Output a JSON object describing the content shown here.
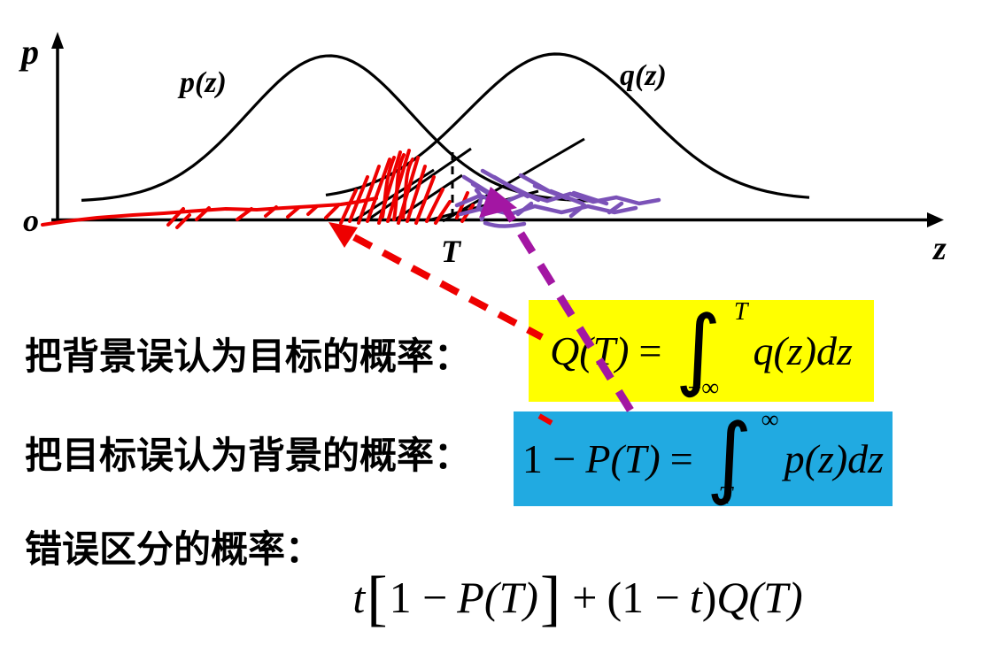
{
  "diagram": {
    "y_axis_label": "p",
    "origin_label": "o",
    "x_axis_label": "z",
    "threshold_label": "T",
    "curve_p_label": "p(z)",
    "curve_q_label": "q(z)"
  },
  "captions": {
    "line1": "把背景误认为目标的概率：",
    "line2": "把目标误认为背景的概率：",
    "line3": "错误区分的概率："
  },
  "formulas": {
    "q_integral": {
      "lhs": "Q(T)",
      "equals": "=",
      "integral_sign": "∫",
      "upper_limit": "T",
      "lower_limit": "−∞",
      "integrand": "q(z)dz"
    },
    "p_integral": {
      "lhs_prefix": "1 −",
      "lhs": "P(T)",
      "equals": "=",
      "integral_sign": "∫",
      "upper_limit": "∞",
      "lower_limit": "T",
      "integrand": "p(z)dz"
    },
    "total_error": {
      "coef1": "t",
      "open_bracket": "[",
      "term1_prefix": "1 −",
      "term1": "P(T)",
      "close_bracket": "]",
      "plus": "+",
      "open_paren": "(1 −",
      "coef2": "t",
      "close_paren": ")",
      "term2": "Q(T)"
    }
  },
  "colors": {
    "highlight_yellow": "#FFFF00",
    "highlight_cyan": "#21AAE1",
    "annotation_red": "#EE0000",
    "annotation_purple_scribble": "#7B52B8",
    "annotation_purple_arrow": "#A316A3",
    "ink_black": "#000000",
    "background": "#FFFFFF"
  }
}
